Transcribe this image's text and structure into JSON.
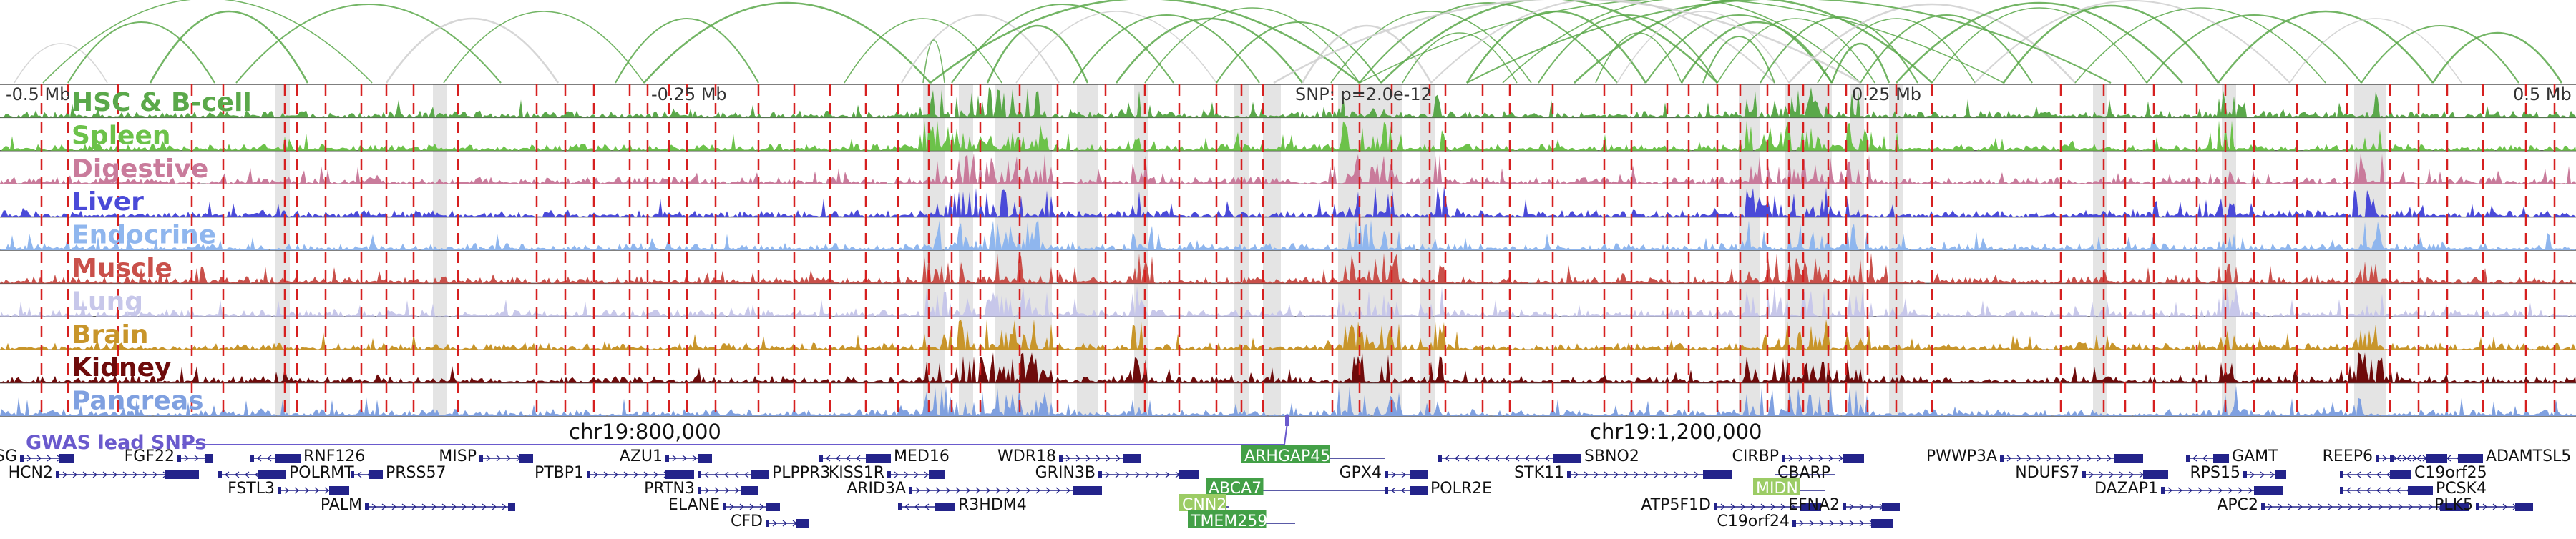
{
  "axis": {
    "left_label": "-0.5 Mb",
    "mid_left_label": "-0.25 Mb",
    "center_label": "SNP: p=2.0e-12",
    "mid_right_label": "0.25 Mb",
    "right_label": "0.5 Mb"
  },
  "tracks": [
    {
      "label": "HSC & B-cell",
      "color": "#5aa84a"
    },
    {
      "label": "Spleen",
      "color": "#6cc24a"
    },
    {
      "label": "Digestive",
      "color": "#c97b9b"
    },
    {
      "label": "Liver",
      "color": "#4a4ad8"
    },
    {
      "label": "Endocrine",
      "color": "#8fb6ee"
    },
    {
      "label": "Muscle",
      "color": "#c9504a"
    },
    {
      "label": "Lung",
      "color": "#c7c7ea"
    },
    {
      "label": "Brain",
      "color": "#c8952a"
    },
    {
      "label": "Kidney",
      "color": "#6e0b0b"
    },
    {
      "label": "Pancreas",
      "color": "#7fa0e0"
    }
  ],
  "gwas": {
    "label": "GWAS lead SNPs",
    "color": "#6a5acd"
  },
  "coordinates": {
    "left": "chr19:800,000",
    "right": "chr19:1,200,000"
  },
  "genes": [
    {
      "name": "BSG",
      "dir": "right",
      "highlight": ""
    },
    {
      "name": "HCN2",
      "dir": "right",
      "highlight": ""
    },
    {
      "name": "FGF22",
      "dir": "right",
      "highlight": ""
    },
    {
      "name": "POLRMT",
      "dir": "left",
      "highlight": ""
    },
    {
      "name": "RNF126",
      "dir": "left",
      "highlight": ""
    },
    {
      "name": "FSTL3",
      "dir": "right",
      "highlight": ""
    },
    {
      "name": "PRSS57",
      "dir": "left",
      "highlight": ""
    },
    {
      "name": "PALM",
      "dir": "right",
      "highlight": ""
    },
    {
      "name": "MISP",
      "dir": "right",
      "highlight": ""
    },
    {
      "name": "AZU1",
      "dir": "right",
      "highlight": ""
    },
    {
      "name": "PTBP1",
      "dir": "right",
      "highlight": ""
    },
    {
      "name": "PLPPR3",
      "dir": "left",
      "highlight": ""
    },
    {
      "name": "PRTN3",
      "dir": "right",
      "highlight": ""
    },
    {
      "name": "ELANE",
      "dir": "right",
      "highlight": ""
    },
    {
      "name": "CFD",
      "dir": "right",
      "highlight": ""
    },
    {
      "name": "MED16",
      "dir": "left",
      "highlight": ""
    },
    {
      "name": "KISS1R",
      "dir": "right",
      "highlight": ""
    },
    {
      "name": "ARID3A",
      "dir": "right",
      "highlight": ""
    },
    {
      "name": "R3HDM4",
      "dir": "left",
      "highlight": ""
    },
    {
      "name": "WDR18",
      "dir": "right",
      "highlight": ""
    },
    {
      "name": "GRIN3B",
      "dir": "right",
      "highlight": ""
    },
    {
      "name": "ARHGAP45",
      "dir": "right",
      "highlight": "green"
    },
    {
      "name": "ABCA7",
      "dir": "right",
      "highlight": "green"
    },
    {
      "name": "CNN2",
      "dir": "right",
      "highlight": "lightgreen"
    },
    {
      "name": "TMEM259",
      "dir": "left",
      "highlight": "green"
    },
    {
      "name": "GPX4",
      "dir": "right",
      "highlight": ""
    },
    {
      "name": "POLR2E",
      "dir": "left",
      "highlight": ""
    },
    {
      "name": "SBNO2",
      "dir": "left",
      "highlight": ""
    },
    {
      "name": "STK11",
      "dir": "right",
      "highlight": ""
    },
    {
      "name": "CIRBP",
      "dir": "right",
      "highlight": ""
    },
    {
      "name": "CBARP",
      "dir": "left",
      "highlight": ""
    },
    {
      "name": "MIDN",
      "dir": "right",
      "highlight": "lightgreen"
    },
    {
      "name": "ATP5F1D",
      "dir": "right",
      "highlight": ""
    },
    {
      "name": "EFNA2",
      "dir": "right",
      "highlight": ""
    },
    {
      "name": "C19orf24",
      "dir": "right",
      "highlight": ""
    },
    {
      "name": "PWWP3A",
      "dir": "right",
      "highlight": ""
    },
    {
      "name": "NDUFS7",
      "dir": "right",
      "highlight": ""
    },
    {
      "name": "GAMT",
      "dir": "left",
      "highlight": ""
    },
    {
      "name": "DAZAP1",
      "dir": "right",
      "highlight": ""
    },
    {
      "name": "RPS15",
      "dir": "right",
      "highlight": ""
    },
    {
      "name": "APC2",
      "dir": "right",
      "highlight": ""
    },
    {
      "name": "REEP6",
      "dir": "right",
      "highlight": ""
    },
    {
      "name": "ADAMTSL5",
      "dir": "left",
      "highlight": ""
    },
    {
      "name": "C19orf25",
      "dir": "left",
      "highlight": ""
    },
    {
      "name": "PCSK4",
      "dir": "left",
      "highlight": ""
    },
    {
      "name": "PLK5",
      "dir": "right",
      "highlight": ""
    }
  ],
  "colors": {
    "arc": "#5aa84a",
    "snp_line": "#d62020",
    "shade": "#d9d9d9",
    "gene": "#23238a",
    "highlight_green": "#43a047",
    "highlight_lightgreen": "#9ccc65"
  }
}
